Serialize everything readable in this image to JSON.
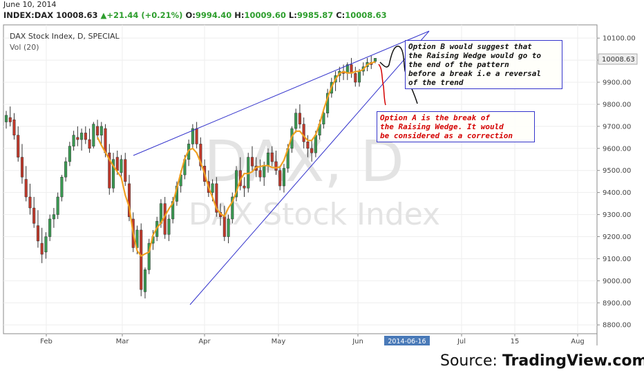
{
  "header": {
    "date": "June 10, 2014",
    "symbol": "INDEX:DAX",
    "last": "10008.63",
    "change": "+21.44 (+0.21%)",
    "open_label": "O:",
    "open": "9994.40",
    "high_label": "H:",
    "high": "10009.60",
    "low_label": "L:",
    "low": "9985.87",
    "close_label": "C:",
    "close": "10008.63"
  },
  "legend": {
    "title": "DAX Stock Index, D, SPECIAL",
    "volume": "Vol (20)"
  },
  "watermark": {
    "line1": "DAX, D",
    "line2": "DAX Stock Index"
  },
  "annotations": {
    "option_b": "Option B would suggest that\nthe Raising Wedge would go to\nthe end of the pattern\nbefore a break i.e a reversal\nof the trend",
    "option_a": "Option A is the break of\nthe Raising Wedge. It would\nbe considered as a correction"
  },
  "axis": {
    "price_tag": "10008.63",
    "date_tag": "2014-06-16"
  },
  "source": {
    "prefix": "Source: ",
    "name": "TradingView.com"
  },
  "colors": {
    "up": "#3a9a52",
    "down": "#c0392b",
    "wedge": "#3333cc",
    "ma": "#f0a020",
    "option_a": "#d40000",
    "option_b": "#111111"
  },
  "chart_data": {
    "type": "candlestick",
    "title": "DAX Stock Index, D, SPECIAL",
    "y_ticks": [
      8800,
      8900,
      9000,
      9100,
      9200,
      9300,
      9400,
      9500,
      9600,
      9700,
      9800,
      9900,
      10000,
      10100
    ],
    "ylim": [
      8760,
      10160
    ],
    "x_ticks": [
      "Feb",
      "Mar",
      "Apr",
      "May",
      "Jun",
      "Jul",
      "15",
      "Aug"
    ],
    "grid": true,
    "ohlc": [
      [
        9720,
        9770,
        9690,
        9750
      ],
      [
        9740,
        9790,
        9700,
        9720
      ],
      [
        9730,
        9760,
        9640,
        9660
      ],
      [
        9660,
        9700,
        9540,
        9560
      ],
      [
        9560,
        9620,
        9440,
        9470
      ],
      [
        9460,
        9520,
        9360,
        9380
      ],
      [
        9380,
        9440,
        9300,
        9330
      ],
      [
        9330,
        9380,
        9240,
        9260
      ],
      [
        9250,
        9320,
        9150,
        9180
      ],
      [
        9170,
        9240,
        9080,
        9120
      ],
      [
        9130,
        9220,
        9100,
        9200
      ],
      [
        9200,
        9300,
        9180,
        9280
      ],
      [
        9280,
        9330,
        9240,
        9300
      ],
      [
        9300,
        9400,
        9280,
        9380
      ],
      [
        9380,
        9480,
        9360,
        9470
      ],
      [
        9470,
        9560,
        9450,
        9540
      ],
      [
        9540,
        9630,
        9520,
        9610
      ],
      [
        9610,
        9680,
        9590,
        9660
      ],
      [
        9650,
        9700,
        9610,
        9640
      ],
      [
        9640,
        9690,
        9590,
        9670
      ],
      [
        9670,
        9700,
        9620,
        9640
      ],
      [
        9640,
        9690,
        9580,
        9600
      ],
      [
        9610,
        9720,
        9600,
        9710
      ],
      [
        9700,
        9730,
        9640,
        9660
      ],
      [
        9660,
        9720,
        9620,
        9700
      ],
      [
        9690,
        9710,
        9560,
        9580
      ],
      [
        9580,
        9620,
        9390,
        9420
      ],
      [
        9420,
        9580,
        9400,
        9550
      ],
      [
        9560,
        9590,
        9480,
        9500
      ],
      [
        9490,
        9570,
        9460,
        9550
      ],
      [
        9550,
        9580,
        9430,
        9450
      ],
      [
        9440,
        9480,
        9270,
        9290
      ],
      [
        9280,
        9310,
        9130,
        9150
      ],
      [
        9150,
        9250,
        9120,
        9230
      ],
      [
        9230,
        9260,
        8930,
        8960
      ],
      [
        8950,
        9060,
        8920,
        9050
      ],
      [
        9050,
        9190,
        9030,
        9170
      ],
      [
        9170,
        9230,
        9140,
        9200
      ],
      [
        9200,
        9290,
        9180,
        9270
      ],
      [
        9260,
        9370,
        9240,
        9350
      ],
      [
        9350,
        9380,
        9190,
        9210
      ],
      [
        9210,
        9300,
        9180,
        9280
      ],
      [
        9280,
        9380,
        9260,
        9360
      ],
      [
        9360,
        9450,
        9340,
        9430
      ],
      [
        9430,
        9500,
        9400,
        9480
      ],
      [
        9480,
        9570,
        9460,
        9550
      ],
      [
        9550,
        9640,
        9520,
        9620
      ],
      [
        9620,
        9710,
        9600,
        9690
      ],
      [
        9690,
        9720,
        9600,
        9620
      ],
      [
        9620,
        9650,
        9500,
        9520
      ],
      [
        9520,
        9550,
        9430,
        9450
      ],
      [
        9450,
        9500,
        9380,
        9400
      ],
      [
        9400,
        9460,
        9360,
        9440
      ],
      [
        9440,
        9470,
        9290,
        9310
      ],
      [
        9310,
        9350,
        9250,
        9290
      ],
      [
        9290,
        9340,
        9180,
        9200
      ],
      [
        9200,
        9300,
        9170,
        9280
      ],
      [
        9280,
        9400,
        9260,
        9380
      ],
      [
        9380,
        9520,
        9360,
        9500
      ],
      [
        9500,
        9560,
        9410,
        9430
      ],
      [
        9430,
        9470,
        9380,
        9420
      ],
      [
        9420,
        9580,
        9400,
        9560
      ],
      [
        9560,
        9610,
        9500,
        9520
      ],
      [
        9520,
        9560,
        9470,
        9500
      ],
      [
        9500,
        9550,
        9450,
        9470
      ],
      [
        9470,
        9540,
        9430,
        9520
      ],
      [
        9520,
        9600,
        9490,
        9580
      ],
      [
        9580,
        9610,
        9520,
        9540
      ],
      [
        9540,
        9590,
        9480,
        9500
      ],
      [
        9500,
        9520,
        9410,
        9430
      ],
      [
        9430,
        9530,
        9400,
        9510
      ],
      [
        9510,
        9620,
        9490,
        9600
      ],
      [
        9600,
        9700,
        9580,
        9690
      ],
      [
        9690,
        9780,
        9670,
        9760
      ],
      [
        9760,
        9800,
        9690,
        9710
      ],
      [
        9710,
        9740,
        9600,
        9630
      ],
      [
        9630,
        9660,
        9560,
        9600
      ],
      [
        9600,
        9640,
        9540,
        9580
      ],
      [
        9580,
        9680,
        9560,
        9660
      ],
      [
        9660,
        9730,
        9640,
        9710
      ],
      [
        9710,
        9780,
        9690,
        9760
      ],
      [
        9760,
        9870,
        9740,
        9850
      ],
      [
        9850,
        9920,
        9830,
        9900
      ],
      [
        9900,
        9950,
        9860,
        9930
      ],
      [
        9930,
        9970,
        9900,
        9950
      ],
      [
        9950,
        9980,
        9910,
        9940
      ],
      [
        9940,
        9990,
        9910,
        9980
      ],
      [
        9980,
        10010,
        9920,
        9940
      ],
      [
        9940,
        9970,
        9880,
        9900
      ],
      [
        9900,
        9960,
        9880,
        9950
      ],
      [
        9950,
        9990,
        9930,
        9970
      ],
      [
        9970,
        10010,
        9950,
        9990
      ],
      [
        9990,
        10020,
        9960,
        9980
      ],
      [
        9994.4,
        10009.6,
        9985.87,
        10008.63
      ]
    ]
  }
}
